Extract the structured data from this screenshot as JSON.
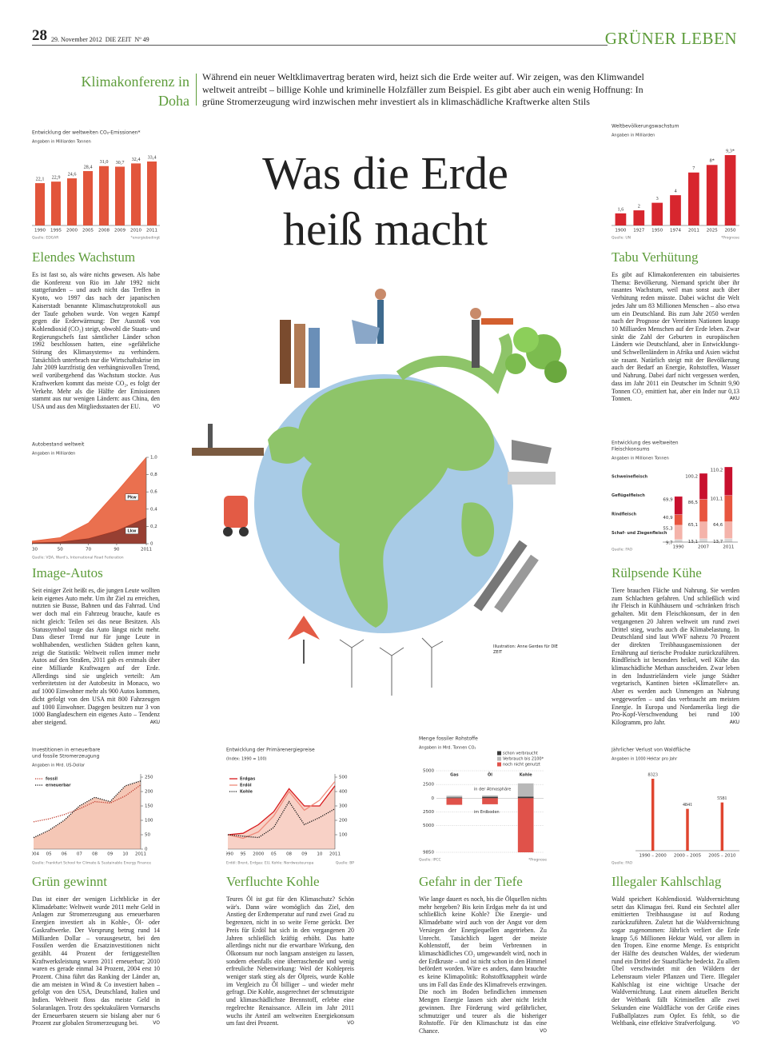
{
  "header": {
    "page": "28",
    "date": "29. November 2012",
    "paper": "DIE ZEIT",
    "issue": "Nº 49",
    "section": "GRÜNER LEBEN"
  },
  "kicker": "Klimakonferenz in Doha",
  "intro": "Während ein neuer Weltklimavertrag beraten wird, heizt sich die Erde weiter auf. Wir zeigen, was den Klimwandel weltweit antreibt – billige Kohle und kriminelle Holzfäller zum Beispiel. Es gibt aber auch ein wenig Hoffnung: In grüne Stromerzeugung wird inzwischen mehr investiert als in klimaschädliche Kraftwerke alten Stils",
  "title": [
    "Was die Erde",
    "heiß macht"
  ],
  "illustration_credit": "Illustration: Anne Gerdes für DIE ZEIT",
  "articles": [
    {
      "heading": "Elendes Wachstum",
      "text": "Es ist fast so, als wäre nichts gewesen. Als habe die Konferenz von Rio im Jahr 1992 nicht stattgefunden – und auch nicht das Treffen in Kyoto, wo 1997 das nach der japanischen Kaiserstadt benannte Klimaschutzprotokoll aus der Taufe gehoben wurde. Von wegen Kampf gegen die Erderwärmung: Der Ausstoß von Kohlendioxid (CO₂) steigt, obwohl die Staats- und Regierungschefs fast sämtlicher Länder schon 1992 beschlossen hatten, eine »gefährliche Störung des Klimasystems« zu verhindern. Tatsächlich unterbrach nur die Wirtschaftskrise im Jahr 2009 kurzfristig den verhängnisvollen Trend, weil vorübergehend das Wachstum stockte. Aus Kraftwerken kommt das meiste CO₂, es folgt der Verkehr. Mehr als die Hälfte der Emissionen stammt aus nur wenigen Ländern: aus China, den USA und aus den Mitgliedsstaaten der EU.",
      "author": "VO"
    },
    {
      "heading": "Tabu Verhütung",
      "text": "Es gibt auf Klimakonferenzen ein tabuisiertes Thema: Bevölkerung. Niemand spricht über ihr rasantes Wachstum, weil man sonst auch über Verhütung reden müsste. Dabei wächst die Welt jedes Jahr um 83 Millionen Menschen – also etwa um ein Deutschland. Bis zum Jahr 2050 werden nach der Prognose der Vereinten Nationen knapp 10 Milliarden Menschen auf der Erde leben. Zwar sinkt die Zahl der Geburten in europäischen Ländern wie Deutschland, aber in Entwicklungs- und Schwellenländern in Afrika und Asien wächst sie rasant. Natürlich steigt mit der Bevölkerung auch der Bedarf an Energie, Rohstoffen, Wasser und Nahrung. Dabei darf nicht vergessen werden, dass im Jahr 2011 ein Deutscher im Schnitt 9,90 Tonnen CO₂ emittiert hat, aber ein Inder nur 0,13 Tonnen.",
      "author": "AKU"
    },
    {
      "heading": "Image-Autos",
      "text": "Seit einiger Zeit heißt es, die jungen Leute wollten kein eigenes Auto mehr. Um ihr Ziel zu erreichen, nutzten sie Busse, Bahnen und das Fahrrad. Und wer doch mal ein Fahrzeug brauche, kaufe es nicht gleich: Teilen sei das neue Besitzen. Als Statussymbol tauge das Auto längst nicht mehr. Dass dieser Trend nur für junge Leute in wohlhabenden, westlichen Städten gelten kann, zeigt die Statistik: Weltweit rollen immer mehr Autos auf den Straßen, 2011 gab es erstmals über eine Milliarde Kraftwagen auf der Erde. Allerdings sind sie ungleich verteilt: Am verbreitetsten ist der Autobesitz in Monaco, wo auf 1000 Einwohner mehr als 900 Autos kommen, dicht gefolgt von den USA mit 800 Fahrzeugen auf 1000 Einwohner. Dagegen besitzen nur 3 von 1000 Bangladeschern ein eigenes Auto – Tendenz aber steigend.",
      "author": "AKU"
    },
    {
      "heading": "Rülpsende Kühe",
      "text": "Tiere brauchen Fläche und Nahrung. Sie werden zum Schlachten gefahren. Und schließlich wird ihr Fleisch in Kühlhäusern und -schränken frisch gehalten. Mit dem Fleischkonsum, der in den vergangenen 20 Jahren weltweit um rund zwei Drittel stieg, wuchs auch die Klimabelastung. In Deutschland sind laut WWF nahezu 70 Prozent der direkten Treibhausgasemissionen der Ernährung auf tierische Produkte zurückzuführen. Rindfleisch ist besonders heikel, weil Kühe das klimaschädliche Methan ausscheiden. Zwar leben in den Industrieländern viele junge Städter vegetarisch, Kantinen bieten »Klimateller« an. Aber es werden auch Unmengen an Nahrung weggeworfen – und das verbraucht am meisten Energie. In Europa und Nordamerika liegt die Pro-Kopf-Verschwendung bei rund 100 Kilogramm, pro Jahr.",
      "author": "AKU"
    },
    {
      "heading": "Grün gewinnt",
      "text": "Das ist einer der wenigen Lichtblicke in der Klimadebatte: Weltweit wurde 2011 mehr Geld in Anlagen zur Stromerzeugung aus erneuerbaren Energien investiert als in Kohle-, Öl- oder Gaskraftwerke. Der Vorsprung betrug rund 14 Milliarden Dollar – vorausgesetzt, bei den Fossilen werden die Ersatzinvestitionen nicht gezählt. 44 Prozent der fertiggestellten Kraftwerksleistung waren 2011 erneuerbar; 2010 waren es gerade einmal 34 Prozent, 2004 erst 10 Prozent. China führt das Ranking der Länder an, die am meisten in Wind & Co investiert haben – gefolgt von den USA, Deutschland, Italien und Indien. Weltweit floss das meiste Geld in Solaranlagen. Trotz des spektakulären Vormarschs der Erneuerbaren steuern sie bislang aber nur 6 Prozent zur globalen Stromerzeugung bei.",
      "author": "VO"
    },
    {
      "heading": "Verfluchte Kohle",
      "text": "Teures Öl ist gut für den Klimaschutz? Schön wär's. Dann wäre womöglich das Ziel, den Anstieg der Erdtemperatur auf rund zwei Grad zu begrenzen, nicht in so weite Ferne gerückt. Der Preis für Erdöl hat sich in den vergangenen 20 Jahren schließlich kräftig erhöht. Das hatte allerdings nicht nur die erwartbare Wirkung, den Ölkonsum nur noch langsam ansteigen zu lassen, sondern ebenfalls eine überraschende und wenig erfreuliche Nebenwirkung: Weil der Kohlepreis weniger stark stieg als der Ölpreis, wurde Kohle im Vergleich zu Öl billiger – und wieder mehr gefragt. Die Kohle, ausgerechnet der schmutzigste und klimaschädlichste Brennstoff, erlebte eine regelrechte Renaissance. Allein im Jahr 2011 wuchs ihr Anteil am weltweiten Energiekonsum um fast drei Prozent.",
      "author": "VO"
    },
    {
      "heading": "Gefahr in der Tiefe",
      "text": "Wie lange dauert es noch, bis die Ölquellen nichts mehr hergeben? Bis kein Erdgas mehr da ist und schließlich keine Kohle? Die Energie- und Klimadebatte wird auch von der Angst vor dem Versiegen der Energiequellen angetrieben. Zu Unrecht. Tatsächlich lagert der meiste Kohlenstoff, der beim Verbrennen in klimaschädliches CO₂ umgewandelt wird, noch in der Erdkruste – und ist nicht schon in den Himmel befördert worden. Wäre es anders, dann brauchte es keine Klimapolitik: Rohstoffknappheit würde uns im Fall das Ende des Klimafrevels erzwingen. Die noch im Boden befindlichen immensen Mengen Energie lassen sich aber nicht leicht gewinnen. Ihre Förderung wird gefährlicher, schmutziger und teurer als die bisheriger Rohstoffe. Für den Klimaschutz ist das eine Chance.",
      "author": "VO"
    },
    {
      "heading": "Illegaler Kahlschlag",
      "text": "Wald speichert Kohlendioxid. Waldvernichtung setzt das Klimagas frei. Rund ein Sechstel aller emittierten Treibhausgase ist auf Rodung zurückzuführen. Zuletzt hat die Waldvernichtung sogar zugenommen: Jährlich verliert die Erde knapp 5,6 Millionen Hektar Wald, vor allem in den Tropen. Eine enorme Menge. Es entspricht der Hälfte des deutschen Waldes, der wiederum rund ein Drittel der Staatsfläche bedeckt. Zu allem Übel verschwindet mit den Wäldern der Lebensraum vieler Pflanzen und Tiere. Illegaler Kahlschlag ist eine wichtige Ursache der Waldvernichtung. Laut einem aktuellen Bericht der Weltbank fällt Kriminellen alle zwei Sekunden eine Waldfläche von der Größe eines Fußballplatzes zum Opfer. Es fehlt, so die Weltbank, eine effektive Strafverfolgung.",
      "author": "VO"
    }
  ],
  "chart_data": [
    {
      "type": "bar",
      "title": "Entwicklung der weltweiten CO₂-Emissionen*",
      "subtitle": "Angaben in Milliarden Tonnen",
      "categories": [
        "1990",
        "1995",
        "2000",
        "2005",
        "2008",
        "2009",
        "2010",
        "2011"
      ],
      "values": [
        22.1,
        22.9,
        24.6,
        28.4,
        31.0,
        30.7,
        32.4,
        33.4
      ],
      "value_labels": [
        "22,1",
        "22,9",
        "24,6",
        "28,4",
        "31,0",
        "30,7",
        "32,4",
        "33,4"
      ],
      "color": "#e2553b",
      "source": "Quelle: EDGAR",
      "note": "*energiebedingt"
    },
    {
      "type": "bar",
      "title": "Weltbevölkerungswachstum",
      "subtitle": "Angaben in Milliarden",
      "categories": [
        "1900",
        "1927",
        "1950",
        "1974",
        "2011",
        "2025",
        "2050"
      ],
      "values": [
        1.6,
        2,
        3,
        4,
        7,
        8,
        9.3
      ],
      "value_labels": [
        "1,6",
        "2",
        "3",
        "4",
        "7",
        "8*",
        "9,3*"
      ],
      "color": "#d7262e",
      "source": "Quelle: UN",
      "note": "*Prognose"
    },
    {
      "type": "area",
      "title": "Autobestand weltweit",
      "subtitle": "Angaben in Milliarden",
      "x": [
        1930,
        1950,
        1970,
        1990,
        2011
      ],
      "series": [
        {
          "name": "Lkw",
          "color": "#8c2a1c",
          "values": [
            0.01,
            0.02,
            0.06,
            0.15,
            0.3
          ]
        },
        {
          "name": "Pkw",
          "color": "#e8603c",
          "values": [
            0.02,
            0.05,
            0.18,
            0.45,
            0.7
          ]
        }
      ],
      "xlim": [
        1930,
        2011
      ],
      "xticks": [
        1930,
        {
          "value": 1950,
          "label": "50"
        },
        {
          "value": 1970,
          "label": "70"
        },
        {
          "value": 1990,
          "label": "90"
        },
        2011
      ],
      "ylim": [
        0,
        1
      ],
      "yticks": [
        0,
        {
          "value": 0.2,
          "label": "0,2"
        },
        {
          "value": 0.4,
          "label": "0,4"
        },
        {
          "value": 0.6,
          "label": "0,6"
        },
        {
          "value": 0.8,
          "label": "0,8"
        },
        {
          "value": 1,
          "label": "1,0"
        }
      ],
      "source": "Quelle: VDA, Ward's, International Road Federation"
    },
    {
      "type": "line",
      "title": [
        "Investitionen in erneuerbare",
        "und fossile Stromerzeugung"
      ],
      "subtitle": "Angaben in Mrd. US-Dollar",
      "categories": [
        "2004",
        "05",
        "06",
        "07",
        "08",
        "09",
        "10",
        "2011"
      ],
      "series": [
        {
          "name": "fossil",
          "color": "#c0392b",
          "style": "dotted",
          "values": [
            95,
            105,
            120,
            140,
            165,
            160,
            185,
            223
          ]
        },
        {
          "name": "erneuerbar",
          "color": "#111111",
          "style": "dotted",
          "fill": "#f3b9a4",
          "values": [
            40,
            65,
            100,
            150,
            180,
            165,
            220,
            237
          ]
        }
      ],
      "ylim": [
        0,
        250
      ],
      "yticks": [
        0,
        50,
        100,
        150,
        200,
        250
      ],
      "source": "Quelle: Frankfurt School for Climate & Sustainable Energy Finance"
    },
    {
      "type": "line",
      "title": "Entwicklung der Primärenergiepreise",
      "subtitle": "(Index: 1990 = 100)",
      "categories": [
        "1990",
        "95",
        "2000",
        "05",
        "08",
        "09",
        "10",
        "2011"
      ],
      "series": [
        {
          "name": "Erdgas",
          "color": "#d7191c",
          "style": "solid",
          "fill": "#f6c6b8",
          "values": [
            100,
            110,
            170,
            260,
            420,
            300,
            300,
            440
          ]
        },
        {
          "name": "Erdöl",
          "color": "#ef8a7a",
          "style": "solid",
          "values": [
            100,
            75,
            120,
            230,
            400,
            270,
            340,
            470
          ]
        },
        {
          "name": "Kohle",
          "color": "#111111",
          "style": "dotted",
          "values": [
            100,
            90,
            80,
            150,
            330,
            170,
            220,
            280
          ]
        }
      ],
      "ylim": [
        0,
        500
      ],
      "yticks": [
        100,
        200,
        300,
        400,
        500
      ],
      "source": "Erdöl: Brent, Erdgas: EU, Kohle: Nordwesteuropa",
      "note": "Quelle: BP"
    },
    {
      "type": "diverging",
      "title": "Menge fossiler Rohstoffe",
      "subtitle": "Angaben in Mrd. Tonnen CO₂",
      "categories": [
        "Gas",
        "Öl",
        "Kohle"
      ],
      "series": [
        {
          "name": "schon verbraucht",
          "color": "#3a3a3a",
          "values": [
            150,
            250,
            300
          ]
        },
        {
          "name": "Verbrauch bis 2100*",
          "color": "#b8b8b8",
          "values": [
            300,
            250,
            2400
          ]
        },
        {
          "name": "noch nicht genutzt",
          "color": "#e0524a",
          "values": [
            -1200,
            -1100,
            -9850
          ]
        }
      ],
      "ylim": [
        -9850,
        5000
      ],
      "yticks": [
        5000,
        2500,
        0,
        {
          "value": -2500,
          "label": "2500"
        },
        {
          "value": -5000,
          "label": "5000"
        },
        {
          "value": -9850,
          "label": "9850"
        }
      ],
      "annotations": [
        "in der Atmosphäre",
        "im Erdboden"
      ],
      "source": "Quelle: IPCC",
      "note": "*Prognose"
    },
    {
      "type": "stacked",
      "title": [
        "Entwicklung des weltweiten",
        "Fleischkonsums"
      ],
      "subtitle": "Angaben in Millionen Tonnen",
      "categories": [
        "1990",
        "2007",
        "2011"
      ],
      "series": [
        {
          "name": "Schweinefleisch",
          "color": "#c8102e",
          "values": [
            69.9,
            100.2,
            110.2
          ],
          "value_labels": [
            "69,9",
            "100,2",
            "110,2"
          ]
        },
        {
          "name": "Geflügelfleisch",
          "color": "#e8553f",
          "values": [
            40.9,
            86.5,
            101.1
          ],
          "value_labels": [
            "40,9",
            "86,5",
            "101,1"
          ]
        },
        {
          "name": "Rindfleisch",
          "color": "#f4b3aa",
          "values": [
            55.3,
            65.1,
            64.6
          ],
          "value_labels": [
            "55,3",
            "65,1",
            "64,6"
          ]
        },
        {
          "name": "Schaf- und Ziegenfleisch",
          "color": "#d9d9d9",
          "values": [
            9.7,
            13.1,
            13.7
          ],
          "value_labels": [
            "9,7",
            "13,1",
            "13,7"
          ]
        }
      ],
      "source": "Quelle: FAO"
    },
    {
      "type": "bar",
      "title": "Jährlicher Verlust von Waldfläche",
      "subtitle": "Angaben in 1000 Hektar pro Jahr",
      "categories": [
        "1990 – 2000",
        "2000 – 2005",
        "2005 – 2010"
      ],
      "values": [
        8323,
        4841,
        5581
      ],
      "color": "#e0452f",
      "source": "Quelle: FAO"
    }
  ]
}
